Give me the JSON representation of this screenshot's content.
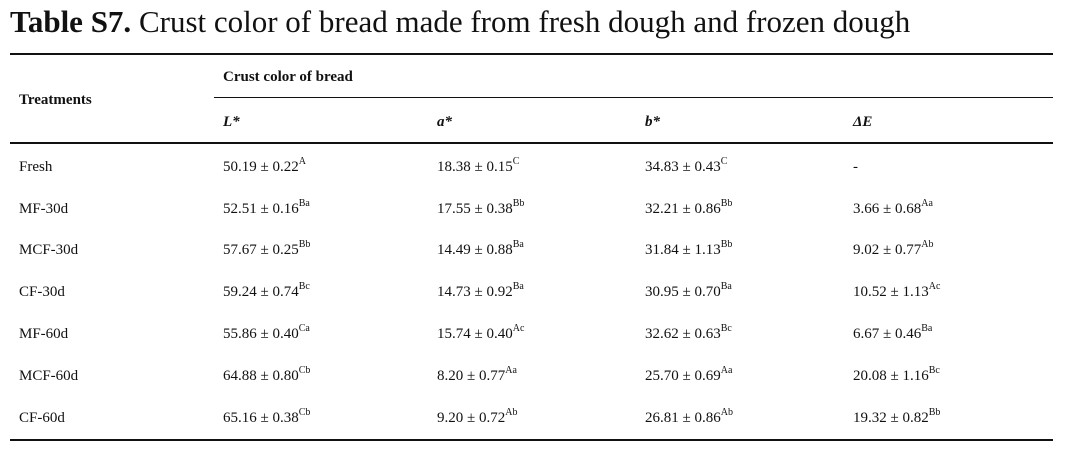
{
  "caption": {
    "label": "Table S7.",
    "text": " Crust color of bread made from fresh dough and frozen dough"
  },
  "header": {
    "row_label": "Treatments",
    "group_label": "Crust color of bread",
    "columns": [
      "L*",
      "a*",
      "b*",
      "ΔE"
    ]
  },
  "rows": [
    {
      "treatment": "Fresh",
      "cells": [
        {
          "value": "50.19 ± 0.22",
          "sup": "A"
        },
        {
          "value": "18.38 ± 0.15",
          "sup": "C"
        },
        {
          "value": "34.83 ± 0.43",
          "sup": "C"
        },
        {
          "value": "-",
          "sup": ""
        }
      ]
    },
    {
      "treatment": "MF-30d",
      "cells": [
        {
          "value": "52.51 ± 0.16",
          "sup": "Ba"
        },
        {
          "value": "17.55 ± 0.38",
          "sup": "Bb"
        },
        {
          "value": "32.21 ± 0.86",
          "sup": "Bb"
        },
        {
          "value": "3.66 ± 0.68",
          "sup": "Aa"
        }
      ]
    },
    {
      "treatment": "MCF-30d",
      "cells": [
        {
          "value": "57.67 ± 0.25",
          "sup": "Bb"
        },
        {
          "value": "14.49 ± 0.88",
          "sup": "Ba"
        },
        {
          "value": "31.84 ± 1.13",
          "sup": "Bb"
        },
        {
          "value": "9.02 ± 0.77",
          "sup": "Ab"
        }
      ]
    },
    {
      "treatment": "CF-30d",
      "cells": [
        {
          "value": "59.24 ± 0.74",
          "sup": "Bc"
        },
        {
          "value": "14.73 ± 0.92",
          "sup": "Ba"
        },
        {
          "value": "30.95 ± 0.70",
          "sup": "Ba"
        },
        {
          "value": "10.52 ± 1.13",
          "sup": "Ac"
        }
      ]
    },
    {
      "treatment": "MF-60d",
      "cells": [
        {
          "value": "55.86 ± 0.40",
          "sup": "Ca"
        },
        {
          "value": "15.74 ± 0.40",
          "sup": "Ac"
        },
        {
          "value": "32.62 ± 0.63",
          "sup": "Bc"
        },
        {
          "value": "6.67 ± 0.46",
          "sup": "Ba"
        }
      ]
    },
    {
      "treatment": "MCF-60d",
      "cells": [
        {
          "value": "64.88 ± 0.80",
          "sup": "Cb"
        },
        {
          "value": "8.20 ± 0.77",
          "sup": "Aa"
        },
        {
          "value": "25.70 ± 0.69",
          "sup": "Aa"
        },
        {
          "value": "20.08 ± 1.16",
          "sup": "Bc"
        }
      ]
    },
    {
      "treatment": "CF-60d",
      "cells": [
        {
          "value": "65.16 ± 0.38",
          "sup": "Cb"
        },
        {
          "value": "9.20 ± 0.72",
          "sup": "Ab"
        },
        {
          "value": "26.81 ± 0.86",
          "sup": "Ab"
        },
        {
          "value": "19.32 ± 0.82",
          "sup": "Bb"
        }
      ]
    }
  ]
}
